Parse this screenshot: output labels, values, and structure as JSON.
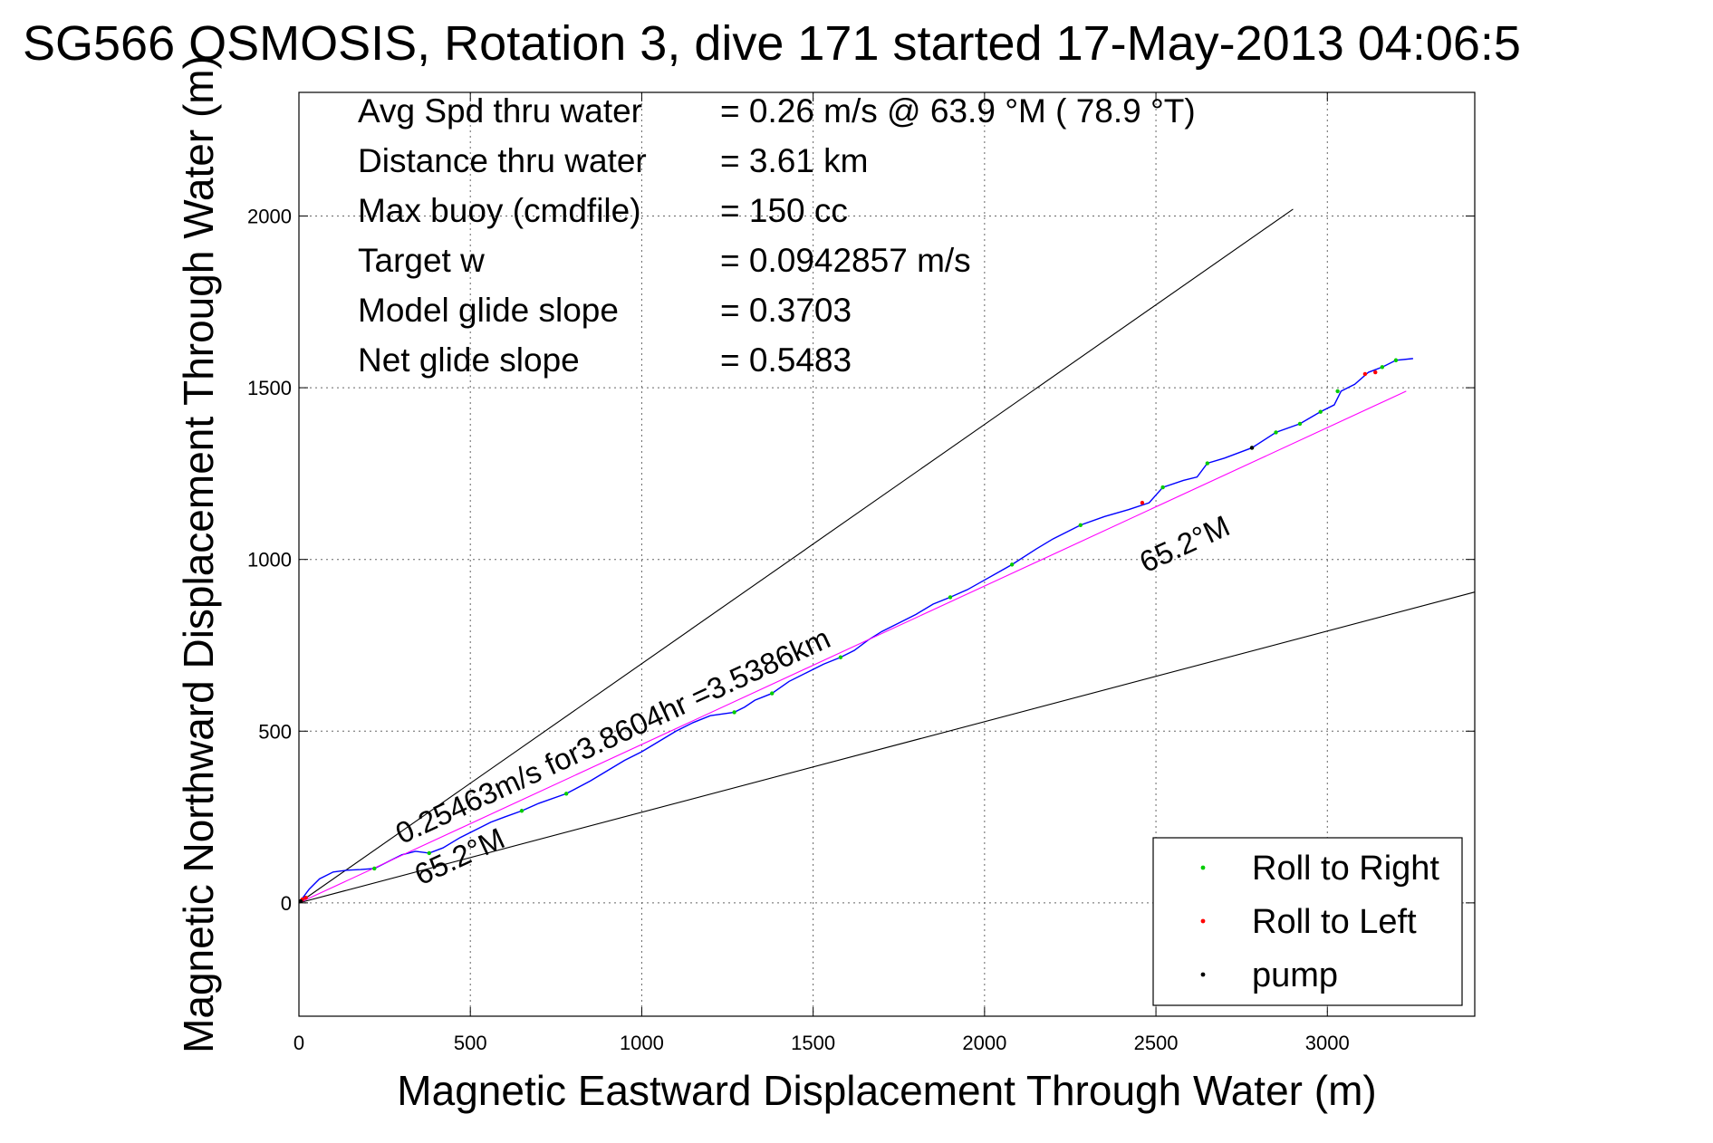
{
  "chart_data": {
    "type": "line",
    "title": "SG566 OSMOSIS, Rotation 3, dive 171 started 17-May-2013 04:06:5",
    "xlabel": "Magnetic Eastward Displacement Through Water (m)",
    "ylabel": "Magnetic Northward Displacement Through Water (m)",
    "xlim": [
      0,
      3430
    ],
    "ylim": [
      -330,
      2360
    ],
    "x_ticks": [
      0,
      500,
      1000,
      1500,
      2000,
      2500,
      3000
    ],
    "y_ticks": [
      0,
      500,
      1000,
      1500,
      2000
    ],
    "grid": true,
    "legend_position": "bottom-right",
    "stats": [
      {
        "label": "Avg Spd thru water",
        "value": "=  0.26 m/s @  63.9 °M ( 78.9 °T)"
      },
      {
        "label": "Distance thru water",
        "value": "=  3.61 km"
      },
      {
        "label": "Max buoy (cmdfile)",
        "value": "= 150 cc"
      },
      {
        "label": "Target w",
        "value": "= 0.0942857 m/s"
      },
      {
        "label": "Model glide slope",
        "value": "= 0.3703"
      },
      {
        "label": "Net glide slope",
        "value": "= 0.5483"
      }
    ],
    "annotations": [
      {
        "text": "0.25463m/s for3.8604hr =3.5386km",
        "x": 300,
        "y": 170,
        "angle_deg": 24.8
      },
      {
        "text": "65.2°M",
        "x": 355,
        "y": 50,
        "angle_deg": 24.8
      },
      {
        "text": "65.2°M",
        "x": 2470,
        "y": 960,
        "angle_deg": 24.8
      }
    ],
    "series": [
      {
        "role": "track",
        "color": "#0000ff",
        "x": [
          0,
          30,
          60,
          100,
          140,
          180,
          220,
          260,
          300,
          340,
          380,
          420,
          470,
          520,
          560,
          600,
          650,
          700,
          780,
          850,
          900,
          950,
          1000,
          1050,
          1100,
          1150,
          1200,
          1270,
          1300,
          1330,
          1380,
          1430,
          1480,
          1530,
          1580,
          1620,
          1660,
          1700,
          1750,
          1800,
          1850,
          1900,
          1950,
          2000,
          2080,
          2150,
          2200,
          2280,
          2350,
          2420,
          2480,
          2520,
          2580,
          2620,
          2650,
          2700,
          2780,
          2850,
          2920,
          2980,
          3020,
          3040,
          3080,
          3120,
          3160,
          3200,
          3250
        ],
        "y": [
          0,
          40,
          70,
          90,
          95,
          97,
          100,
          120,
          140,
          150,
          145,
          160,
          190,
          215,
          235,
          250,
          268,
          290,
          318,
          355,
          385,
          415,
          440,
          470,
          500,
          525,
          545,
          555,
          570,
          590,
          610,
          645,
          670,
          695,
          715,
          735,
          765,
          790,
          815,
          840,
          870,
          890,
          912,
          940,
          985,
          1030,
          1060,
          1100,
          1125,
          1145,
          1165,
          1210,
          1230,
          1240,
          1280,
          1295,
          1325,
          1370,
          1395,
          1430,
          1450,
          1490,
          1510,
          1545,
          1560,
          1580,
          1585
        ]
      },
      {
        "role": "heading-fit",
        "color": "#ff00ff",
        "x": [
          0,
          3230
        ],
        "y": [
          0,
          1490
        ]
      },
      {
        "role": "heading-limit",
        "color": "#000000",
        "x": [
          0,
          2900
        ],
        "y": [
          0,
          2020
        ]
      },
      {
        "role": "heading-limit",
        "color": "#000000",
        "x": [
          0,
          3430
        ],
        "y": [
          0,
          905
        ]
      },
      {
        "name": "Roll to Right",
        "color": "#00cc00",
        "marker": "dot",
        "x": [
          220,
          380,
          650,
          780,
          1270,
          1380,
          1580,
          1900,
          2080,
          2280,
          2520,
          2650,
          2780,
          2850,
          2920,
          2980,
          3030,
          3160,
          3200
        ],
        "y": [
          100,
          145,
          268,
          318,
          555,
          610,
          715,
          890,
          985,
          1100,
          1210,
          1280,
          1325,
          1370,
          1395,
          1430,
          1490,
          1560,
          1580
        ]
      },
      {
        "name": "Roll to Left",
        "color": "#ff0000",
        "marker": "dot",
        "x": [
          10,
          20,
          2460,
          3110,
          3140
        ],
        "y": [
          10,
          15,
          1165,
          1540,
          1545
        ]
      },
      {
        "name": "pump",
        "color": "#000000",
        "marker": "dot",
        "x": [
          5,
          2780
        ],
        "y": [
          5,
          1325
        ]
      }
    ]
  }
}
